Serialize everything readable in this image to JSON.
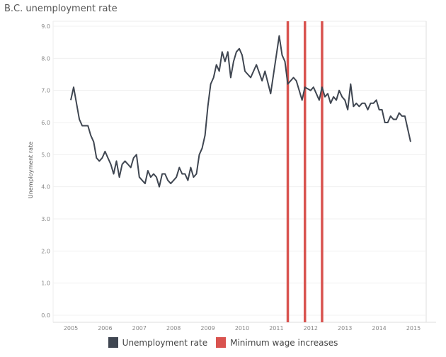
{
  "chart_data": {
    "type": "line",
    "title": "B.C. unemployment rate",
    "xlabel": "",
    "ylabel": "Unemployment rate",
    "ylim": [
      0,
      9
    ],
    "yticks": [
      "0.0",
      "1.0",
      "2.0",
      "3.0",
      "4.0",
      "5.0",
      "6.0",
      "7.0",
      "8.0",
      "9.0"
    ],
    "xlim": [
      2004.5,
      2015.4
    ],
    "xticks": [
      "2005",
      "2006",
      "2007",
      "2008",
      "2009",
      "2010",
      "2011",
      "2012",
      "2013",
      "2014",
      "2015"
    ],
    "grid": "horizontal",
    "legend_placement": "bottom",
    "series": [
      {
        "name": "Unemployment rate",
        "color": "#3f4651",
        "dates": [
          "2005-01",
          "2005-02",
          "2005-04",
          "2005-05",
          "2005-07",
          "2005-08",
          "2005-09",
          "2005-10",
          "2005-11",
          "2005-12",
          "2006-01",
          "2006-02",
          "2006-03",
          "2006-04",
          "2006-05",
          "2006-06",
          "2006-07",
          "2006-08",
          "2006-09",
          "2006-10",
          "2006-11",
          "2006-12",
          "2007-01",
          "2007-03",
          "2007-04",
          "2007-05",
          "2007-06",
          "2007-07",
          "2007-08",
          "2007-09",
          "2007-10",
          "2007-11",
          "2007-12",
          "2008-02",
          "2008-03",
          "2008-04",
          "2008-05",
          "2008-06",
          "2008-07",
          "2008-08",
          "2008-09",
          "2008-10",
          "2008-11",
          "2008-12",
          "2009-01",
          "2009-02",
          "2009-03",
          "2009-04",
          "2009-05",
          "2009-06",
          "2009-07",
          "2009-08",
          "2009-09",
          "2009-10",
          "2009-11",
          "2009-12",
          "2010-01",
          "2010-02",
          "2010-04",
          "2010-06",
          "2010-08",
          "2010-09",
          "2010-11",
          "2011-02",
          "2011-03",
          "2011-04",
          "2011-05",
          "2011-07",
          "2011-08",
          "2011-10",
          "2011-11",
          "2012-01",
          "2012-02",
          "2012-04",
          "2012-05",
          "2012-06",
          "2012-07",
          "2012-08",
          "2012-09",
          "2012-10",
          "2012-11",
          "2012-12",
          "2013-01",
          "2013-02",
          "2013-03",
          "2013-04",
          "2013-05",
          "2013-06",
          "2013-07",
          "2013-08",
          "2013-09",
          "2013-10",
          "2013-11",
          "2013-12",
          "2014-01",
          "2014-02",
          "2014-03",
          "2014-04",
          "2014-05",
          "2014-06",
          "2014-07",
          "2014-08",
          "2014-09",
          "2014-10",
          "2014-12"
        ],
        "values": [
          6.7,
          7.1,
          6.1,
          5.9,
          5.9,
          5.6,
          5.4,
          4.9,
          4.8,
          4.9,
          5.1,
          4.9,
          4.7,
          4.4,
          4.8,
          4.3,
          4.7,
          4.8,
          4.7,
          4.6,
          4.9,
          5.0,
          4.3,
          4.1,
          4.5,
          4.3,
          4.4,
          4.3,
          4.0,
          4.4,
          4.4,
          4.2,
          4.1,
          4.3,
          4.6,
          4.4,
          4.4,
          4.2,
          4.6,
          4.3,
          4.4,
          5.0,
          5.2,
          5.6,
          6.5,
          7.2,
          7.4,
          7.8,
          7.6,
          8.2,
          7.9,
          8.2,
          7.4,
          7.9,
          8.2,
          8.3,
          8.1,
          7.6,
          7.4,
          7.8,
          7.3,
          7.6,
          6.9,
          8.7,
          8.1,
          7.9,
          7.2,
          7.4,
          7.3,
          6.7,
          7.1,
          7.0,
          7.1,
          6.7,
          7.1,
          6.8,
          6.9,
          6.6,
          6.8,
          6.7,
          7.0,
          6.8,
          6.7,
          6.4,
          7.2,
          6.5,
          6.6,
          6.5,
          6.6,
          6.6,
          6.4,
          6.6,
          6.6,
          6.7,
          6.4,
          6.4,
          6.0,
          6.0,
          6.2,
          6.1,
          6.1,
          6.3,
          6.2,
          6.2,
          5.4
        ]
      },
      {
        "name": "Minimum wage increases",
        "color": "#d9534f",
        "dates": [
          "2011-05",
          "2011-11",
          "2012-05"
        ]
      }
    ]
  }
}
